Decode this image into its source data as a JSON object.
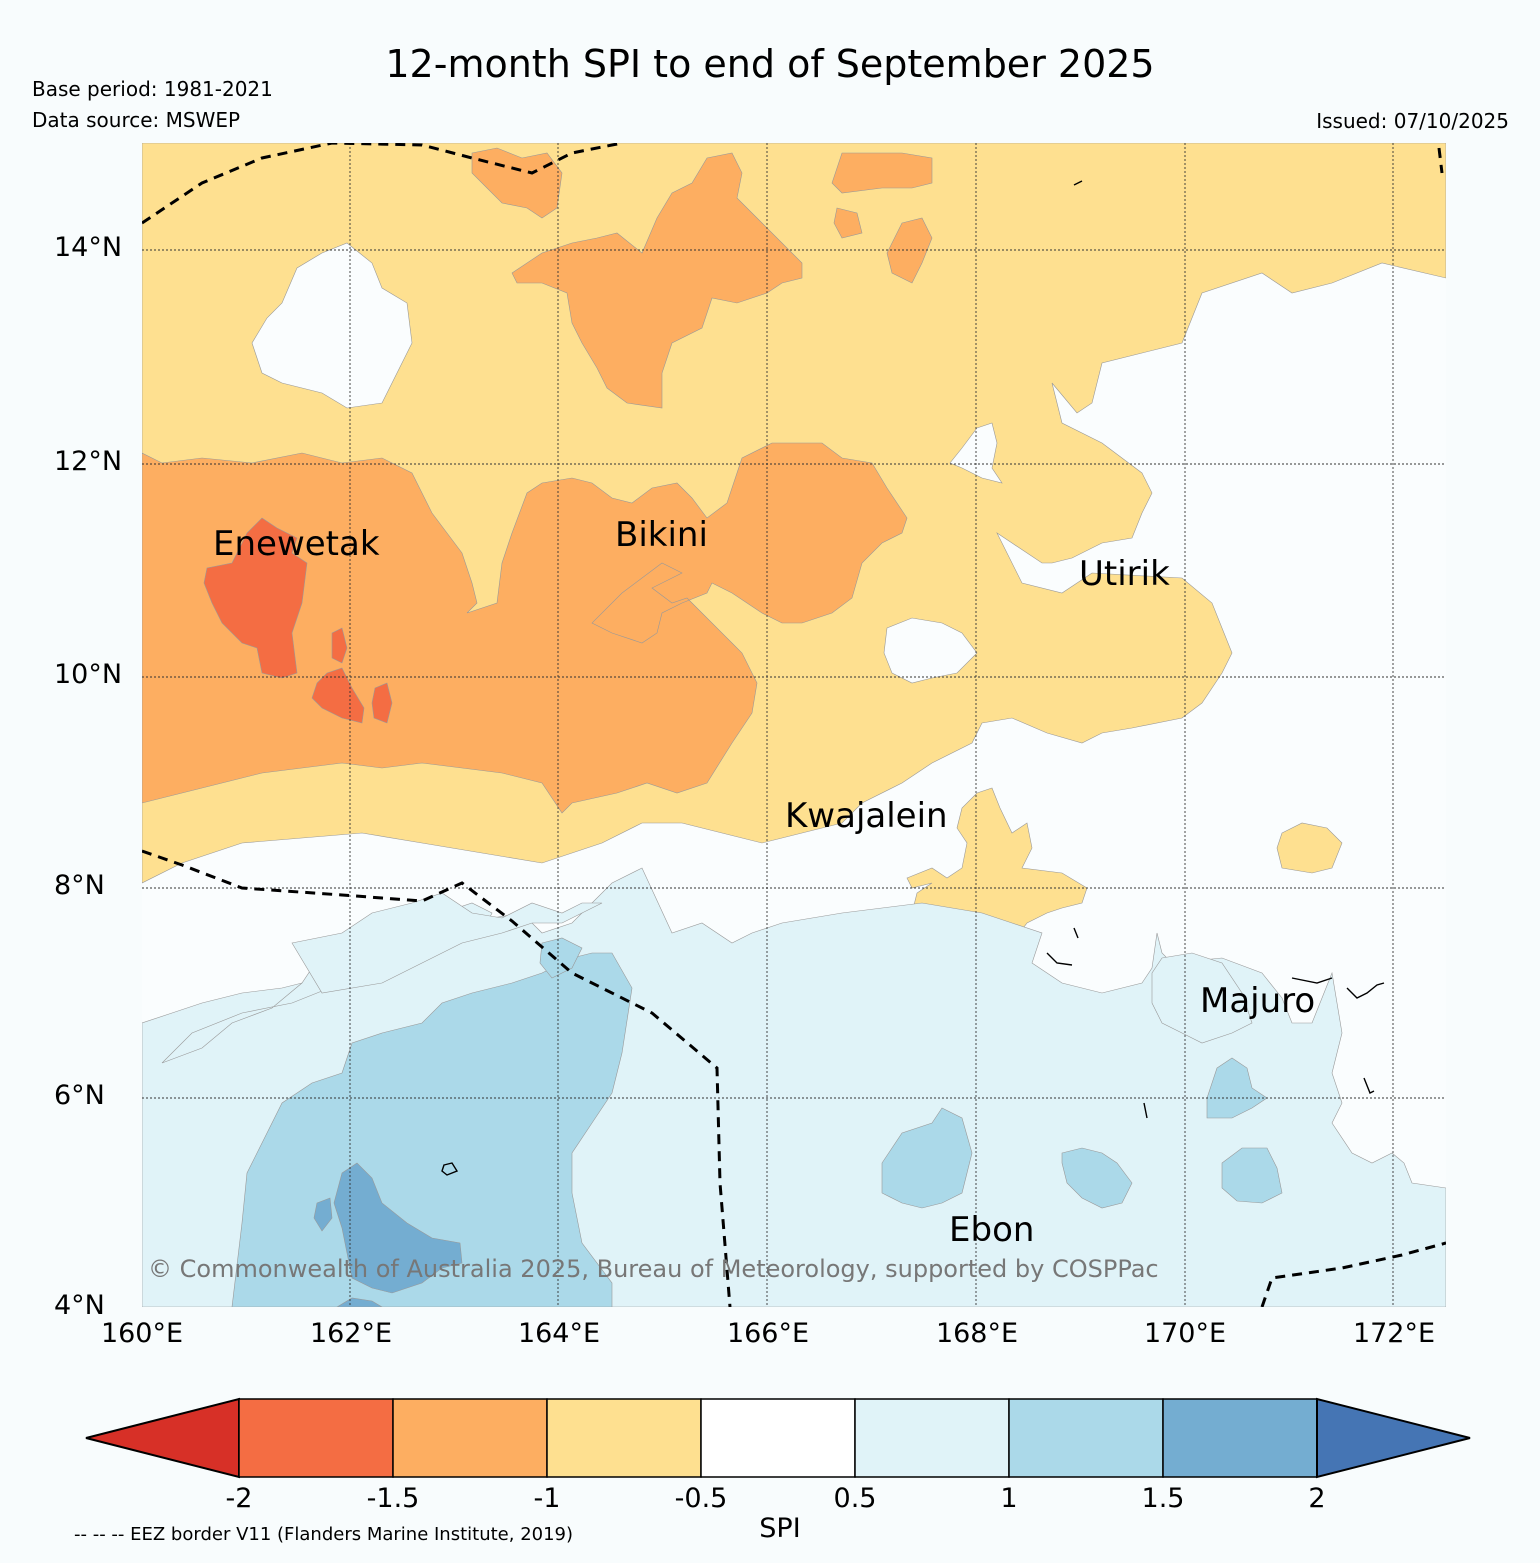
{
  "title": "12-month SPI to end of September 2025",
  "base_period": "Base period: 1981-2021",
  "data_source": "Data source: MSWEP",
  "issued": "Issued: 07/10/2025",
  "latitude_labels": [
    "14°N",
    "12°N",
    "10°N",
    "8°N",
    "6°N",
    "4°N"
  ],
  "longitude_labels": [
    "160°E",
    "162°E",
    "164°E",
    "166°E",
    "168°E",
    "170°E",
    "172°E"
  ],
  "places": {
    "enewetak": "Enewetak",
    "bikini": "Bikini",
    "utirik": "Utirik",
    "kwajalein": "Kwajalein",
    "majuro": "Majuro",
    "ebon": "Ebon"
  },
  "copyright": "© Commonwealth of Australia 2025, Bureau of Meteorology, supported by COSPPac",
  "colorbar": {
    "label": "SPI",
    "ticks": [
      "-2",
      "-1.5",
      "-1",
      "-0.5",
      "0.5",
      "1",
      "1.5",
      "2"
    ],
    "colors": [
      "#d73027",
      "#f46d43",
      "#fdae61",
      "#fee090",
      "#ffffff",
      "#e0f3f8",
      "#abd9e9",
      "#74add1",
      "#4575b4"
    ]
  },
  "eez_note": "-- -- -- EEZ border V11 (Flanders Marine Institute, 2019)"
}
